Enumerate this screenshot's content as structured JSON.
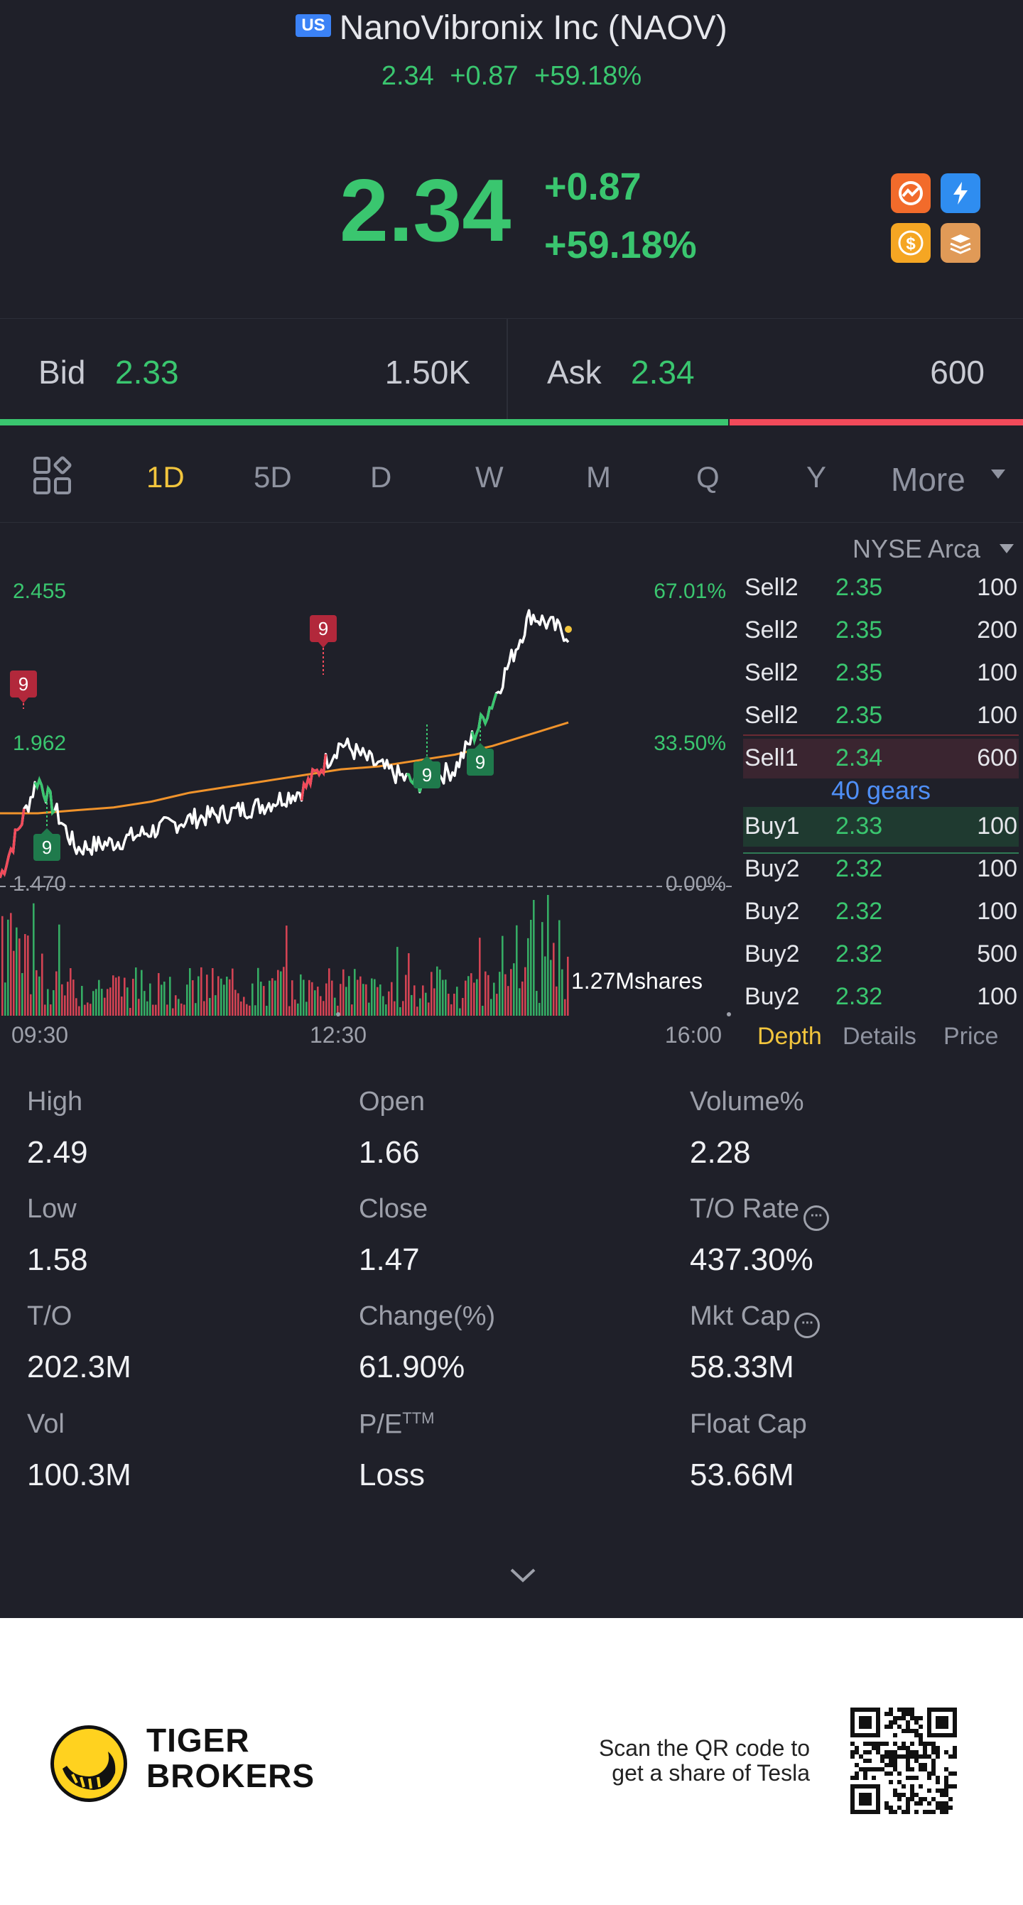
{
  "header": {
    "market_badge": "US",
    "title": "NanoVibronix Inc (NAOV)",
    "price": "2.34",
    "change": "+0.87",
    "change_pct": "+59.18%"
  },
  "quote": {
    "price": "2.34",
    "change": "+0.87",
    "change_pct": "+59.18%",
    "icons": [
      "market-sentiment-icon",
      "flash-icon",
      "dividend-icon",
      "layers-icon"
    ]
  },
  "bid_ask": {
    "bid_label": "Bid",
    "bid_price": "2.33",
    "bid_size": "1.50K",
    "ask_label": "Ask",
    "ask_price": "2.34",
    "ask_size": "600",
    "bid_share": 0.713
  },
  "tabs": {
    "items": [
      "1D",
      "5D",
      "D",
      "W",
      "M",
      "Q",
      "Y",
      "More"
    ],
    "active": "1D"
  },
  "chart": {
    "exchange": "NYSE Arca",
    "price_labels": [
      "2.455",
      "1.962",
      "1.470"
    ],
    "pct_labels": [
      "67.01%",
      "33.50%",
      "0.00%"
    ],
    "volume_label": "1.27Mshares",
    "time_labels": [
      "09:30",
      "12:30",
      "16:00"
    ],
    "signal_markers": [
      "9",
      "9",
      "9",
      "9",
      "9",
      "9"
    ]
  },
  "chart_data": {
    "type": "line",
    "x_range": [
      "09:30",
      "16:00"
    ],
    "ylim": [
      1.47,
      2.455
    ],
    "price_ticks": [
      2.455,
      1.962,
      1.47
    ],
    "pct_ticks": [
      "67.01%",
      "33.50%",
      "0.00%"
    ],
    "series": [
      {
        "name": "",
        "values": [
          1.5,
          1.84,
          1.6,
          1.62,
          1.66,
          1.7,
          1.72,
          1.75,
          1.8,
          1.96,
          1.88,
          1.82,
          1.87,
          2.1,
          2.4,
          2.33
        ]
      },
      {
        "name": "",
        "values": [
          1.72,
          1.72,
          1.73,
          1.74,
          1.76,
          1.79,
          1.81,
          1.83,
          1.85,
          1.87,
          1.88,
          1.9,
          1.92,
          1.95,
          1.99,
          2.03
        ]
      }
    ],
    "volume_max": "1.27Mshares"
  },
  "order_book": {
    "asks": [
      {
        "label": "Sell2",
        "price": "2.35",
        "qty": "100"
      },
      {
        "label": "Sell2",
        "price": "2.35",
        "qty": "200"
      },
      {
        "label": "Sell2",
        "price": "2.35",
        "qty": "100"
      },
      {
        "label": "Sell2",
        "price": "2.35",
        "qty": "100"
      },
      {
        "label": "Sell1",
        "price": "2.34",
        "qty": "600"
      }
    ],
    "gears": "40 gears",
    "bids": [
      {
        "label": "Buy1",
        "price": "2.33",
        "qty": "100"
      },
      {
        "label": "Buy2",
        "price": "2.32",
        "qty": "100"
      },
      {
        "label": "Buy2",
        "price": "2.32",
        "qty": "100"
      },
      {
        "label": "Buy2",
        "price": "2.32",
        "qty": "500"
      },
      {
        "label": "Buy2",
        "price": "2.32",
        "qty": "100"
      }
    ],
    "tabs": [
      "Depth",
      "Details",
      "Price"
    ]
  },
  "stats": {
    "high_label": "High",
    "high": "2.49",
    "open_label": "Open",
    "open": "1.66",
    "volpct_label": "Volume%",
    "volpct": "2.28",
    "low_label": "Low",
    "low": "1.58",
    "close_label": "Close",
    "close": "1.47",
    "torate_label": "T/O Rate",
    "torate": "437.30%",
    "to_label": "T/O",
    "to": "202.3M",
    "chg_label": "Change(%)",
    "chg": "61.90%",
    "mktcap_label": "Mkt Cap",
    "mktcap": "58.33M",
    "vol_label": "Vol",
    "vol": "100.3M",
    "pe_label": "P/E",
    "pe_sup": "TTM",
    "pe": "Loss",
    "floatcap_label": "Float Cap",
    "floatcap": "53.66M"
  },
  "footer": {
    "brand_line1": "TIGER",
    "brand_line2": "BROKERS",
    "scan_line1": "Scan the QR code to",
    "scan_line2": "get a share of Tesla"
  },
  "colors": {
    "up": "#3ac66f",
    "down": "#f24a5a",
    "active_tab": "#f2c53d",
    "avg_line": "#f0932b",
    "link": "#4f8ff7"
  }
}
